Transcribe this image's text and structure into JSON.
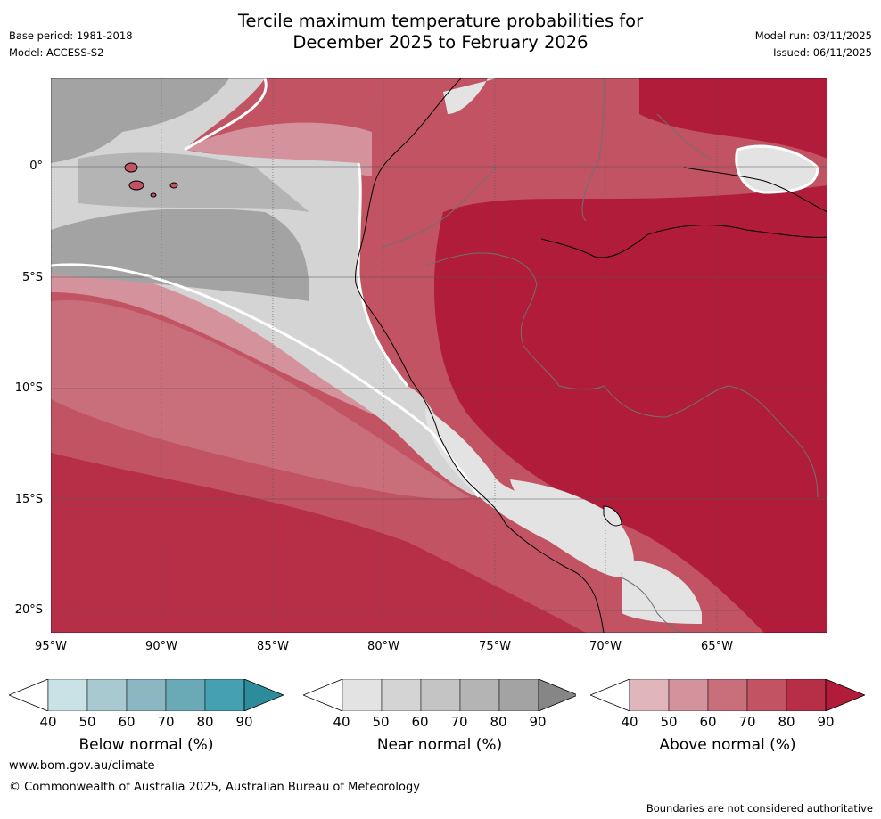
{
  "header": {
    "title_line1": "Tercile maximum temperature probabilities for",
    "title_line2": "December 2025 to February 2026",
    "base_period": "Base period: 1981-2018",
    "model": "Model: ACCESS-S2",
    "model_run": "Model run: 03/11/2025",
    "issued": "Issued: 06/11/2025"
  },
  "map": {
    "lat_labels": [
      "0°",
      "5°S",
      "10°S",
      "15°S",
      "20°S"
    ],
    "lon_labels": [
      "95°W",
      "90°W",
      "85°W",
      "80°W",
      "75°W",
      "70°W",
      "65°W"
    ]
  },
  "legends": [
    {
      "title": "Below normal (%)",
      "ticks": [
        "40",
        "50",
        "60",
        "70",
        "80",
        "90"
      ],
      "colors": [
        "#ffffff",
        "#c8e2e6",
        "#a7c9cf",
        "#8ab7c2",
        "#6aaab6",
        "#45a0b1",
        "#2c8c9c"
      ]
    },
    {
      "title": "Near normal (%)",
      "ticks": [
        "40",
        "50",
        "60",
        "70",
        "80",
        "90"
      ],
      "colors": [
        "#ffffff",
        "#e3e3e3",
        "#d4d4d4",
        "#c4c4c4",
        "#b4b4b4",
        "#a3a3a3",
        "#868686"
      ]
    },
    {
      "title": "Above normal (%)",
      "ticks": [
        "40",
        "50",
        "60",
        "70",
        "80",
        "90"
      ],
      "colors": [
        "#ffffff",
        "#e0b6bc",
        "#d4939c",
        "#c96f7b",
        "#c15363",
        "#b72f47",
        "#b01c3a"
      ]
    }
  ],
  "footer": {
    "website": "www.bom.gov.au/climate",
    "copyright": "© Commonwealth of Australia 2025, Australian Bureau of Meteorology",
    "disclaimer": "Boundaries are not considered authoritative"
  }
}
